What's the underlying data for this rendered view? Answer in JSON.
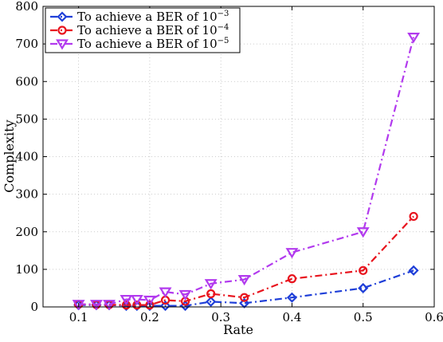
{
  "chart_data": {
    "type": "line",
    "xlabel": "Rate",
    "ylabel": "Complexity",
    "xlim": [
      0.05,
      0.6
    ],
    "ylim": [
      0,
      800
    ],
    "xticks": [
      "0.1",
      "0.2",
      "0.3",
      "0.4",
      "0.5",
      "0.6"
    ],
    "yticks": [
      "0",
      "100",
      "200",
      "300",
      "400",
      "500",
      "600",
      "700",
      "800"
    ],
    "grid": true,
    "legend_position": "top-left",
    "series": [
      {
        "name": "To achieve a BER of 10^-3",
        "legend_base": "To achieve a BER of 10",
        "legend_exp": "−3",
        "color": "#1f3fd8",
        "marker": "diamond",
        "x": [
          0.1,
          0.125,
          0.143,
          0.167,
          0.182,
          0.2,
          0.222,
          0.25,
          0.286,
          0.333,
          0.4,
          0.5,
          0.571
        ],
        "y": [
          5,
          5,
          5,
          3,
          3,
          3,
          3,
          3,
          14,
          10,
          25,
          50,
          97
        ]
      },
      {
        "name": "To achieve a BER of 10^-4",
        "legend_base": "To achieve a BER of 10",
        "legend_exp": "−4",
        "color": "#e8141e",
        "marker": "circle",
        "x": [
          0.1,
          0.125,
          0.143,
          0.167,
          0.182,
          0.2,
          0.222,
          0.25,
          0.286,
          0.333,
          0.4,
          0.5,
          0.571
        ],
        "y": [
          7,
          6,
          6,
          5,
          5,
          5,
          18,
          15,
          35,
          25,
          75,
          97,
          241
        ]
      },
      {
        "name": "To achieve a BER of 10^-5",
        "legend_base": "To achieve a BER of 10",
        "legend_exp": "−5",
        "color": "#b23aee",
        "marker": "triangle-down",
        "x": [
          0.1,
          0.125,
          0.143,
          0.167,
          0.182,
          0.2,
          0.222,
          0.25,
          0.286,
          0.333,
          0.4,
          0.5,
          0.571
        ],
        "y": [
          7,
          7,
          7,
          20,
          20,
          18,
          40,
          33,
          62,
          73,
          145,
          200,
          718
        ]
      }
    ]
  }
}
